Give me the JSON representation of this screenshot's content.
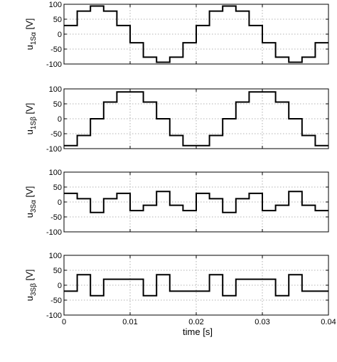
{
  "chart_data": [
    {
      "type": "line",
      "ylabel": "u1Sα [V]",
      "ylabel_parts": {
        "main": "u",
        "sub": "1Sα",
        "unit": " [V]"
      },
      "xlim": [
        0,
        0.04
      ],
      "ylim": [
        -100,
        100
      ],
      "grid": true,
      "x_ticks": [
        "0",
        "0.01",
        "0.02",
        "0.03",
        "0.04"
      ],
      "y_ticks": [
        "-100",
        "-50",
        "0",
        "50",
        "100"
      ],
      "series": [
        {
          "x": [
            0,
            0.002,
            0.002,
            0.004,
            0.004,
            0.006,
            0.006,
            0.008,
            0.008,
            0.01,
            0.01,
            0.012,
            0.012,
            0.014,
            0.014,
            0.016,
            0.016,
            0.018,
            0.018,
            0.02,
            0.02,
            0.022,
            0.022,
            0.024,
            0.024,
            0.026,
            0.026,
            0.028,
            0.028,
            0.03,
            0.03,
            0.032,
            0.032,
            0.034,
            0.034,
            0.036,
            0.036,
            0.038,
            0.038,
            0.04
          ],
          "y": [
            29,
            29,
            77,
            77,
            94,
            94,
            77,
            77,
            29,
            29,
            -29,
            -29,
            -77,
            -77,
            -94,
            -94,
            -77,
            -77,
            -29,
            -29,
            29,
            29,
            77,
            77,
            94,
            94,
            77,
            77,
            29,
            29,
            -29,
            -29,
            -77,
            -77,
            -94,
            -94,
            -77,
            -77,
            -29,
            -29
          ]
        }
      ]
    },
    {
      "type": "line",
      "ylabel": "u1Sβ [V]",
      "ylabel_parts": {
        "main": "u",
        "sub": "1Sβ",
        "unit": " [V]"
      },
      "xlim": [
        0,
        0.04
      ],
      "ylim": [
        -100,
        100
      ],
      "grid": true,
      "x_ticks": [
        "0",
        "0.01",
        "0.02",
        "0.03",
        "0.04"
      ],
      "y_ticks": [
        "-100",
        "-50",
        "0",
        "50",
        "100"
      ],
      "series": [
        {
          "x": [
            0,
            0.002,
            0.002,
            0.004,
            0.004,
            0.006,
            0.006,
            0.008,
            0.008,
            0.012,
            0.012,
            0.014,
            0.014,
            0.016,
            0.016,
            0.018,
            0.018,
            0.022,
            0.022,
            0.024,
            0.024,
            0.026,
            0.026,
            0.028,
            0.028,
            0.032,
            0.032,
            0.034,
            0.034,
            0.036,
            0.036,
            0.038,
            0.038,
            0.04
          ],
          "y": [
            -90,
            -90,
            -56,
            -56,
            0,
            0,
            56,
            56,
            90,
            90,
            56,
            56,
            0,
            0,
            -56,
            -56,
            -90,
            -90,
            -56,
            -56,
            0,
            0,
            56,
            56,
            90,
            90,
            56,
            56,
            0,
            0,
            -56,
            -56,
            -90,
            -90
          ]
        }
      ]
    },
    {
      "type": "line",
      "ylabel": "u3Sα [V]",
      "ylabel_parts": {
        "main": "u",
        "sub": "3Sα",
        "unit": " [V]"
      },
      "xlim": [
        0,
        0.04
      ],
      "ylim": [
        -100,
        100
      ],
      "grid": true,
      "x_ticks": [
        "0",
        "0.01",
        "0.02",
        "0.03",
        "0.04"
      ],
      "y_ticks": [
        "-100",
        "-50",
        "0",
        "50",
        "100"
      ],
      "series": [
        {
          "x": [
            0,
            0.002,
            0.002,
            0.004,
            0.004,
            0.006,
            0.006,
            0.008,
            0.008,
            0.01,
            0.01,
            0.012,
            0.012,
            0.014,
            0.014,
            0.016,
            0.016,
            0.018,
            0.018,
            0.02,
            0.02,
            0.022,
            0.022,
            0.024,
            0.024,
            0.026,
            0.026,
            0.028,
            0.028,
            0.03,
            0.03,
            0.032,
            0.032,
            0.034,
            0.034,
            0.036,
            0.036,
            0.038,
            0.038,
            0.04
          ],
          "y": [
            29,
            29,
            11,
            11,
            -35,
            -35,
            11,
            11,
            29,
            29,
            -29,
            -29,
            -11,
            -11,
            35,
            35,
            -11,
            -11,
            -29,
            -29,
            29,
            29,
            11,
            11,
            -35,
            -35,
            11,
            11,
            29,
            29,
            -29,
            -29,
            -11,
            -11,
            35,
            35,
            -11,
            -11,
            -29,
            -29
          ]
        }
      ]
    },
    {
      "type": "line",
      "ylabel": "u3Sβ [V]",
      "ylabel_parts": {
        "main": "u",
        "sub": "3Sβ",
        "unit": " [V]"
      },
      "xlabel": "time [s]",
      "xlim": [
        0,
        0.04
      ],
      "ylim": [
        -100,
        100
      ],
      "grid": true,
      "x_ticks": [
        "0",
        "0.01",
        "0.02",
        "0.03",
        "0.04"
      ],
      "y_ticks": [
        "-100",
        "-50",
        "0",
        "50",
        "100"
      ],
      "series": [
        {
          "x": [
            0,
            0.002,
            0.002,
            0.004,
            0.004,
            0.006,
            0.006,
            0.008,
            0.008,
            0.012,
            0.012,
            0.014,
            0.014,
            0.016,
            0.016,
            0.018,
            0.018,
            0.022,
            0.022,
            0.024,
            0.024,
            0.026,
            0.026,
            0.028,
            0.028,
            0.032,
            0.032,
            0.034,
            0.034,
            0.036,
            0.036,
            0.038,
            0.038,
            0.04
          ],
          "y": [
            -20,
            -20,
            35,
            35,
            -35,
            -35,
            20,
            20,
            20,
            20,
            -35,
            -35,
            35,
            35,
            -20,
            -20,
            -20,
            -20,
            35,
            35,
            -35,
            -35,
            20,
            20,
            20,
            20,
            -35,
            -35,
            35,
            35,
            -20,
            -20,
            -20,
            -20
          ]
        }
      ]
    }
  ]
}
